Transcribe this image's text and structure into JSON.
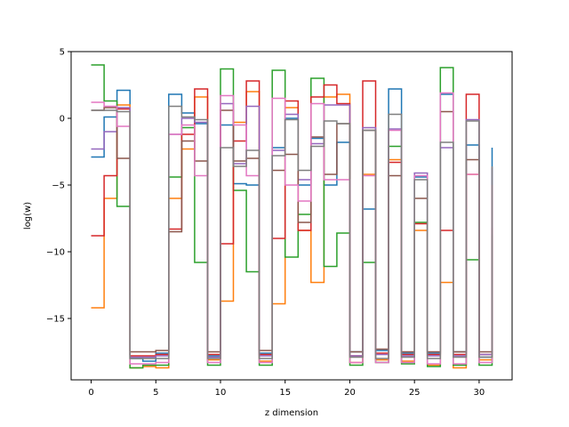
{
  "chart_data": {
    "type": "line",
    "step": "post",
    "xlabel": "z dimension",
    "ylabel": "log(w)",
    "xlim": [
      -1.55,
      32.55
    ],
    "ylim": [
      -19.6,
      5.0
    ],
    "xticks": [
      0,
      5,
      10,
      15,
      20,
      25,
      30
    ],
    "yticks": [
      5,
      0,
      -5,
      -10,
      -15
    ],
    "xtick_labels": [
      "0",
      "5",
      "10",
      "15",
      "20",
      "25",
      "30"
    ],
    "ytick_labels": [
      "5",
      "0",
      "−5",
      "−10",
      "−15"
    ],
    "x": [
      0,
      1,
      2,
      3,
      4,
      5,
      6,
      7,
      8,
      9,
      10,
      11,
      12,
      13,
      14,
      15,
      16,
      17,
      18,
      19,
      20,
      21,
      22,
      23,
      24,
      25,
      26,
      27,
      28,
      29,
      30,
      31
    ],
    "series": [
      {
        "color": "#1f77b4",
        "values": [
          -2.9,
          0.1,
          2.1,
          -18.0,
          -18.2,
          -17.6,
          1.8,
          0.4,
          -0.4,
          -17.8,
          -0.5,
          -4.9,
          -5.0,
          -17.6,
          -2.2,
          0.0,
          -5.0,
          -1.5,
          -5.0,
          -1.8,
          -17.5,
          -6.8,
          -17.4,
          2.2,
          -17.6,
          -4.4,
          -17.6,
          1.8,
          -17.5,
          -2.0,
          -17.9,
          -2.2
        ]
      },
      {
        "color": "#ff7f0e",
        "values": [
          -14.2,
          -6.0,
          1.0,
          -18.7,
          -18.6,
          -18.7,
          -6.0,
          -2.3,
          1.6,
          -18.1,
          -13.7,
          -0.3,
          2.0,
          -18.2,
          -13.9,
          0.8,
          -8.4,
          -12.3,
          1.6,
          1.8,
          -18.3,
          -4.2,
          -18.1,
          -3.1,
          -18.2,
          -8.4,
          -18.5,
          -12.3,
          -18.7,
          -4.2,
          -18.1,
          -5.0
        ]
      },
      {
        "color": "#2ca02c",
        "values": [
          4.0,
          1.3,
          -6.6,
          -18.7,
          -18.5,
          -18.5,
          -4.4,
          -0.7,
          -10.8,
          -18.5,
          3.7,
          -5.4,
          -11.5,
          -18.5,
          3.6,
          -10.4,
          -7.2,
          3.0,
          -11.1,
          -8.6,
          -18.5,
          -10.8,
          -18.3,
          -2.1,
          -18.4,
          -7.8,
          -18.6,
          3.8,
          -18.5,
          -10.6,
          -18.5,
          -8.7
        ]
      },
      {
        "color": "#d62728",
        "values": [
          -8.8,
          -4.3,
          0.7,
          -17.8,
          -17.8,
          -17.7,
          -8.3,
          -1.2,
          2.2,
          -17.7,
          -9.4,
          -1.7,
          2.8,
          -17.7,
          -9.0,
          1.3,
          -8.4,
          1.6,
          2.5,
          1.1,
          -17.8,
          2.8,
          -17.6,
          -3.3,
          -17.7,
          -7.9,
          -17.7,
          -8.4,
          -17.7,
          1.8,
          -17.7,
          -8.2
        ]
      },
      {
        "color": "#9467bd",
        "values": [
          -2.3,
          -1.0,
          0.8,
          -17.9,
          -17.9,
          -17.8,
          -1.2,
          0.0,
          -0.3,
          -17.9,
          1.1,
          -3.4,
          0.9,
          -17.8,
          -2.4,
          0.3,
          -4.6,
          -1.9,
          1.0,
          1.0,
          -17.8,
          -0.7,
          -17.7,
          -0.8,
          -17.8,
          -4.1,
          -17.8,
          -2.2,
          -17.8,
          -0.1,
          -17.7,
          -3.7
        ]
      },
      {
        "color": "#8c564b",
        "values": [
          0.6,
          0.8,
          -3.0,
          -17.5,
          -17.5,
          -17.4,
          -8.5,
          -1.7,
          -3.2,
          -17.5,
          0.6,
          -3.2,
          -3.0,
          -17.4,
          -3.9,
          -2.7,
          -7.8,
          -1.4,
          -4.2,
          -0.4,
          -17.5,
          -0.9,
          -17.3,
          -4.3,
          -17.5,
          -6.0,
          -17.5,
          0.5,
          -17.5,
          -3.1,
          -17.5,
          -8.8
        ]
      },
      {
        "color": "#e377c2",
        "values": [
          1.2,
          0.9,
          -0.6,
          -18.4,
          -18.4,
          -18.3,
          -1.2,
          -0.5,
          -4.3,
          -18.3,
          1.7,
          -0.5,
          -4.3,
          -18.3,
          1.5,
          -5.0,
          -6.2,
          1.1,
          -4.6,
          -4.6,
          -18.3,
          -4.3,
          -18.3,
          -0.9,
          -18.3,
          -4.3,
          -18.4,
          1.9,
          -18.4,
          -4.2,
          -18.3,
          -5.0
        ]
      },
      {
        "color": "#7f7f7f",
        "values": [
          0.6,
          0.6,
          0.5,
          -18.0,
          -18.0,
          -18.0,
          0.9,
          0.1,
          -0.1,
          -18.0,
          -2.2,
          -3.6,
          -2.4,
          -18.0,
          -2.8,
          -0.1,
          -3.9,
          -2.1,
          -0.2,
          -0.4,
          -17.9,
          -0.9,
          -18.0,
          0.3,
          -17.9,
          -4.6,
          -18.0,
          -1.8,
          -17.9,
          -0.2,
          -17.9,
          -3.6
        ]
      }
    ]
  }
}
